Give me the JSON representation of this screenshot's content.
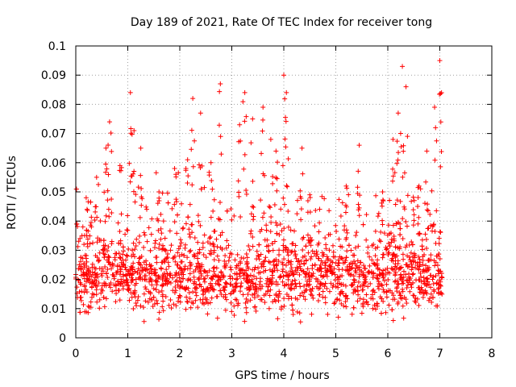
{
  "chart_data": {
    "type": "scatter",
    "title": "Day 189 of 2021, Rate Of TEC Index for receiver tong",
    "xlabel": "GPS time / hours",
    "ylabel": "ROTI / TECUs",
    "xlim": [
      0,
      8
    ],
    "ylim": [
      0,
      0.1
    ],
    "x_ticks": [
      "0",
      "1",
      "2",
      "3",
      "4",
      "5",
      "6",
      "7",
      "8"
    ],
    "y_ticks": [
      "0",
      "0.01",
      "0.02",
      "0.03",
      "0.04",
      "0.05",
      "0.06",
      "0.07",
      "0.08",
      "0.09",
      "0.1"
    ],
    "grid": true,
    "marker": "+",
    "series_color": "#ff0000",
    "series": [
      {
        "name": "ROTI",
        "x_range": [
          0,
          7.05
        ],
        "typical_range": [
          0.012,
          0.03
        ],
        "peaks": [
          {
            "x": 0.2,
            "y": 0.048
          },
          {
            "x": 0.4,
            "y": 0.055
          },
          {
            "x": 0.58,
            "y": 0.065
          },
          {
            "x": 0.65,
            "y": 0.074
          },
          {
            "x": 0.85,
            "y": 0.059
          },
          {
            "x": 1.05,
            "y": 0.084
          },
          {
            "x": 1.12,
            "y": 0.071
          },
          {
            "x": 1.25,
            "y": 0.065
          },
          {
            "x": 1.6,
            "y": 0.05
          },
          {
            "x": 1.9,
            "y": 0.058
          },
          {
            "x": 2.15,
            "y": 0.061
          },
          {
            "x": 2.25,
            "y": 0.082
          },
          {
            "x": 2.4,
            "y": 0.077
          },
          {
            "x": 2.6,
            "y": 0.06
          },
          {
            "x": 2.78,
            "y": 0.087
          },
          {
            "x": 3.15,
            "y": 0.073
          },
          {
            "x": 3.25,
            "y": 0.084
          },
          {
            "x": 3.4,
            "y": 0.075
          },
          {
            "x": 3.6,
            "y": 0.079
          },
          {
            "x": 3.75,
            "y": 0.068
          },
          {
            "x": 3.85,
            "y": 0.064
          },
          {
            "x": 4.0,
            "y": 0.09
          },
          {
            "x": 4.05,
            "y": 0.084
          },
          {
            "x": 4.35,
            "y": 0.065
          },
          {
            "x": 4.5,
            "y": 0.049
          },
          {
            "x": 5.2,
            "y": 0.052
          },
          {
            "x": 5.45,
            "y": 0.066
          },
          {
            "x": 5.9,
            "y": 0.05
          },
          {
            "x": 6.1,
            "y": 0.068
          },
          {
            "x": 6.2,
            "y": 0.077
          },
          {
            "x": 6.28,
            "y": 0.093
          },
          {
            "x": 6.35,
            "y": 0.086
          },
          {
            "x": 6.6,
            "y": 0.052
          },
          {
            "x": 6.75,
            "y": 0.064
          },
          {
            "x": 6.9,
            "y": 0.079
          },
          {
            "x": 7.0,
            "y": 0.095
          }
        ]
      }
    ]
  }
}
